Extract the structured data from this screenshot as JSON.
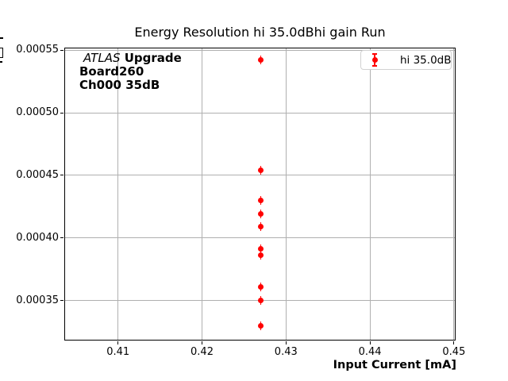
{
  "figure": {
    "title": "Energy Resolution hi 35.0dBhi gain Run"
  },
  "annotation": {
    "line1_italic": "ATLAS",
    "line1_bold": " Upgrade",
    "line2": "Board260",
    "line3": "Ch000 35dB"
  },
  "legend": {
    "label": "hi 35.0dB",
    "marker": "errorbar-point-icon",
    "marker_color": "#ff0000",
    "position": "upper right"
  },
  "colors": {
    "marker": "#ff0000",
    "grid": "#b0b0b0",
    "axis": "#000000",
    "legend_border": "#d2d2d2",
    "background": "#ffffff"
  },
  "chart_data": {
    "type": "scatter",
    "title": "Energy Resolution hi 35.0dBhi gain Run",
    "xlabel": "Input Current [mA]",
    "ylabel": "",
    "grid": true,
    "legend_position": "upper right",
    "xlim": [
      0.4036,
      0.4502
    ],
    "ylim": [
      0.000318,
      0.000552
    ],
    "xticks": [
      0.41,
      0.42,
      0.43,
      0.44,
      0.45
    ],
    "xtick_labels": [
      "0.41",
      "0.42",
      "0.43",
      "0.44",
      "0.45"
    ],
    "yticks": [
      0.00035,
      0.0004,
      0.00045,
      0.0005,
      0.00055
    ],
    "ytick_labels": [
      "0.00035",
      "0.00040",
      "0.00045",
      "0.00050",
      "0.00055"
    ],
    "series": [
      {
        "name": "hi 35.0dB",
        "color": "#ff0000",
        "marker": "circle-errorbar",
        "x": [
          0.427,
          0.427,
          0.427,
          0.427,
          0.427,
          0.427,
          0.427,
          0.427,
          0.427,
          0.427
        ],
        "y": [
          0.000542,
          0.000454,
          0.00043,
          0.000419,
          0.000409,
          0.000391,
          0.000386,
          0.000361,
          0.00035,
          0.00033
        ]
      }
    ]
  }
}
